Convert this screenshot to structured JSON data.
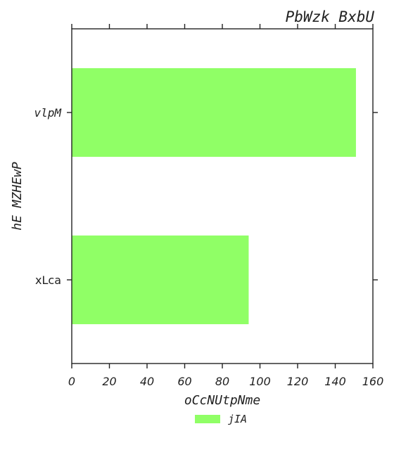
{
  "chart_data": {
    "type": "bar",
    "orientation": "horizontal",
    "title": "PbWzk BxbU",
    "xlabel": "oCcNUtpNme",
    "ylabel": "hE MZHEwP",
    "categories": [
      "vlpM",
      "xLca"
    ],
    "series": [
      {
        "name": "jIA",
        "values": [
          151,
          94
        ],
        "color": "#90ff66"
      }
    ],
    "xlim": [
      0,
      160
    ],
    "xticks": [
      0,
      20,
      40,
      60,
      80,
      100,
      120,
      140,
      160
    ],
    "xtick_labels": [
      "0",
      "20",
      "40",
      "60",
      "80",
      "100",
      "120",
      "140",
      "160"
    ],
    "grid": false,
    "legend_position": "bottom-center"
  }
}
